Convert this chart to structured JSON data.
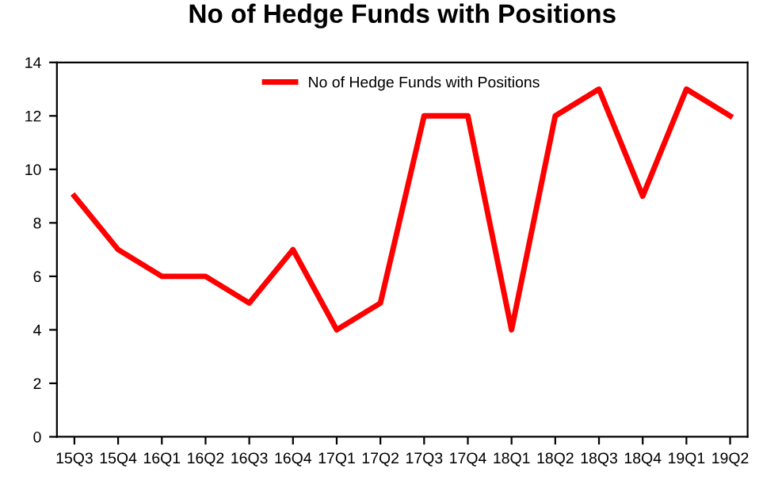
{
  "chart_data": {
    "type": "line",
    "title": "No of Hedge Funds with Positions",
    "categories": [
      "15Q3",
      "15Q4",
      "16Q1",
      "16Q2",
      "16Q3",
      "16Q4",
      "17Q1",
      "17Q2",
      "17Q3",
      "17Q4",
      "18Q1",
      "18Q2",
      "18Q3",
      "18Q4",
      "19Q1",
      "19Q2"
    ],
    "series": [
      {
        "name": "No of Hedge Funds with Positions",
        "color": "#ff0000",
        "values": [
          9,
          7,
          6,
          6,
          5,
          7,
          4,
          5,
          12,
          12,
          4,
          12,
          13,
          9,
          13,
          12
        ]
      }
    ],
    "ylim": [
      0,
      14
    ],
    "yticks": [
      0,
      2,
      4,
      6,
      8,
      10,
      12,
      14
    ],
    "grid": false,
    "legend": "top",
    "marker": "none",
    "line_style": "solid"
  }
}
